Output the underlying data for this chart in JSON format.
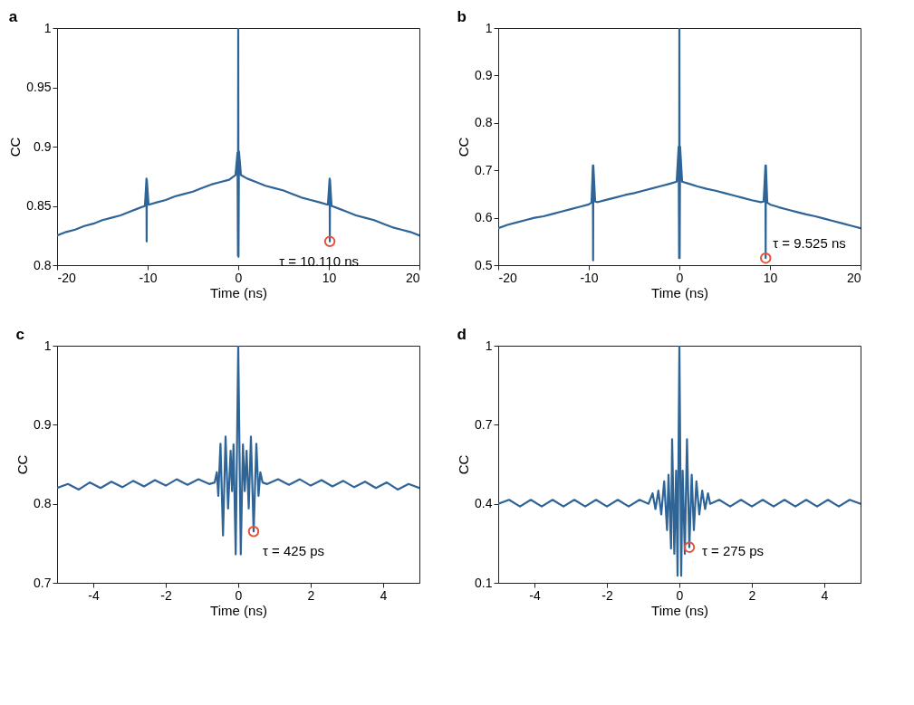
{
  "chart_data": [
    {
      "type": "line",
      "title": "a",
      "xlabel": "Time (ns)",
      "ylabel": "CC",
      "xlim": [
        -20,
        20
      ],
      "xticks": [
        -20,
        -10,
        0,
        10,
        20
      ],
      "ylim": [
        0.8,
        1
      ],
      "yticks": [
        0.8,
        0.85,
        0.9,
        0.95,
        1
      ],
      "grid": false,
      "series": [
        {
          "color": "#2e6496",
          "x": [
            -20,
            -19,
            -18,
            -17,
            -16,
            -15,
            -14,
            -13,
            -12,
            -11,
            -10.3,
            -10.13,
            -10.11,
            -10.09,
            -9.9,
            -9,
            -8,
            -7,
            -6,
            -5,
            -4,
            -3,
            -2,
            -1,
            -0.3,
            -0.08,
            -0.03,
            0,
            0.03,
            0.08,
            0.3,
            1,
            2,
            3,
            4,
            5,
            6,
            7,
            8,
            9,
            9.9,
            10.09,
            10.11,
            10.13,
            10.3,
            11,
            12,
            13,
            14,
            15,
            16,
            17,
            18,
            19,
            20
          ],
          "values": [
            0.825,
            0.828,
            0.83,
            0.833,
            0.835,
            0.838,
            0.84,
            0.842,
            0.845,
            0.848,
            0.85,
            0.873,
            0.82,
            0.872,
            0.851,
            0.853,
            0.855,
            0.858,
            0.86,
            0.862,
            0.865,
            0.868,
            0.87,
            0.872,
            0.876,
            0.895,
            0.808,
            1.0,
            0.807,
            0.896,
            0.876,
            0.873,
            0.87,
            0.867,
            0.865,
            0.863,
            0.86,
            0.857,
            0.855,
            0.853,
            0.851,
            0.873,
            0.82,
            0.872,
            0.85,
            0.848,
            0.845,
            0.842,
            0.84,
            0.838,
            0.835,
            0.832,
            0.83,
            0.828,
            0.825
          ]
        },
        {
          "type": "scatter",
          "marker": "circle",
          "color": "#e5533d",
          "x": [
            10.11
          ],
          "values": [
            0.82
          ]
        }
      ],
      "annotations": [
        {
          "text": "τ = 10.110 ns",
          "x": 10.11,
          "y": 0.82
        }
      ]
    },
    {
      "type": "line",
      "title": "b",
      "xlabel": "Time (ns)",
      "ylabel": "CC",
      "xlim": [
        -20,
        20
      ],
      "xticks": [
        -20,
        -10,
        0,
        10,
        20
      ],
      "ylim": [
        0.5,
        1
      ],
      "yticks": [
        0.5,
        0.6,
        0.7,
        0.8,
        0.9,
        1
      ],
      "grid": false,
      "series": [
        {
          "color": "#2e6496",
          "x": [
            -20,
            -19,
            -18,
            -17,
            -16,
            -15,
            -14,
            -13,
            -12,
            -11,
            -10,
            -9.7,
            -9.55,
            -9.525,
            -9.5,
            -9.3,
            -9,
            -8,
            -7,
            -6,
            -5,
            -4,
            -3,
            -2,
            -1,
            -0.3,
            -0.08,
            -0.03,
            0,
            0.03,
            0.08,
            0.3,
            1,
            2,
            3,
            4,
            5,
            6,
            7,
            8,
            9,
            9.3,
            9.5,
            9.525,
            9.55,
            9.7,
            10,
            11,
            12,
            13,
            14,
            15,
            16,
            17,
            18,
            19,
            20
          ],
          "values": [
            0.578,
            0.585,
            0.59,
            0.595,
            0.6,
            0.603,
            0.608,
            0.613,
            0.618,
            0.623,
            0.628,
            0.632,
            0.71,
            0.51,
            0.71,
            0.634,
            0.633,
            0.638,
            0.643,
            0.648,
            0.652,
            0.657,
            0.662,
            0.667,
            0.672,
            0.676,
            0.75,
            0.515,
            1.0,
            0.515,
            0.75,
            0.676,
            0.672,
            0.666,
            0.661,
            0.657,
            0.652,
            0.647,
            0.642,
            0.637,
            0.633,
            0.634,
            0.71,
            0.515,
            0.71,
            0.632,
            0.628,
            0.622,
            0.617,
            0.612,
            0.607,
            0.603,
            0.598,
            0.593,
            0.588,
            0.583,
            0.578
          ]
        },
        {
          "type": "scatter",
          "marker": "circle",
          "color": "#e5533d",
          "x": [
            9.525
          ],
          "values": [
            0.515
          ]
        }
      ],
      "annotations": [
        {
          "text": "τ = 9.525 ns",
          "x": 9.525,
          "y": 0.515
        }
      ]
    },
    {
      "type": "line",
      "title": "c",
      "xlabel": "Time (ns)",
      "ylabel": "CC",
      "xlim": [
        -5,
        5
      ],
      "xticks": [
        -4,
        -2,
        0,
        2,
        4
      ],
      "ylim": [
        0.7,
        1
      ],
      "yticks": [
        0.7,
        0.8,
        0.9,
        1
      ],
      "grid": false,
      "series": [
        {
          "color": "#2e6496",
          "x": [
            -5,
            -4.7,
            -4.4,
            -4.1,
            -3.8,
            -3.5,
            -3.2,
            -2.9,
            -2.6,
            -2.3,
            -2.0,
            -1.7,
            -1.4,
            -1.1,
            -0.8,
            -0.65,
            -0.59,
            -0.55,
            -0.49,
            -0.42,
            -0.35,
            -0.28,
            -0.21,
            -0.17,
            -0.13,
            -0.07,
            0,
            0.07,
            0.13,
            0.18,
            0.23,
            0.29,
            0.35,
            0.425,
            0.5,
            0.56,
            0.61,
            0.67,
            0.8,
            1.1,
            1.4,
            1.7,
            2.0,
            2.3,
            2.6,
            2.9,
            3.2,
            3.5,
            3.8,
            4.1,
            4.4,
            4.7,
            5
          ],
          "values": [
            0.82,
            0.825,
            0.818,
            0.827,
            0.82,
            0.828,
            0.821,
            0.829,
            0.822,
            0.83,
            0.823,
            0.831,
            0.824,
            0.831,
            0.825,
            0.827,
            0.84,
            0.81,
            0.876,
            0.76,
            0.885,
            0.794,
            0.867,
            0.816,
            0.875,
            0.736,
            1.0,
            0.736,
            0.875,
            0.816,
            0.867,
            0.794,
            0.885,
            0.765,
            0.876,
            0.81,
            0.84,
            0.827,
            0.825,
            0.831,
            0.824,
            0.831,
            0.823,
            0.83,
            0.822,
            0.829,
            0.821,
            0.828,
            0.82,
            0.827,
            0.818,
            0.825,
            0.82
          ]
        },
        {
          "type": "scatter",
          "marker": "circle",
          "color": "#e5533d",
          "x": [
            0.425
          ],
          "values": [
            0.765
          ]
        }
      ],
      "annotations": [
        {
          "text": "τ = 425 ps",
          "x": 0.425,
          "y": 0.765
        }
      ]
    },
    {
      "type": "line",
      "title": "d",
      "xlabel": "Time (ns)",
      "ylabel": "CC",
      "xlim": [
        -5,
        5
      ],
      "xticks": [
        -4,
        -2,
        0,
        2,
        4
      ],
      "ylim": [
        0.1,
        1
      ],
      "yticks": [
        0.1,
        0.4,
        0.7,
        1
      ],
      "grid": false,
      "series": [
        {
          "color": "#2e6496",
          "x": [
            -5,
            -4.7,
            -4.4,
            -4.1,
            -3.8,
            -3.5,
            -3.2,
            -2.9,
            -2.6,
            -2.3,
            -2.0,
            -1.7,
            -1.4,
            -1.1,
            -0.85,
            -0.74,
            -0.66,
            -0.58,
            -0.5,
            -0.42,
            -0.34,
            -0.3,
            -0.23,
            -0.2,
            -0.14,
            -0.09,
            -0.05,
            0,
            0.05,
            0.09,
            0.15,
            0.21,
            0.275,
            0.34,
            0.4,
            0.47,
            0.55,
            0.63,
            0.71,
            0.79,
            0.85,
            1.1,
            1.4,
            1.7,
            2.0,
            2.3,
            2.6,
            2.9,
            3.2,
            3.5,
            3.8,
            4.1,
            4.4,
            4.7,
            5
          ],
          "values": [
            0.4,
            0.415,
            0.39,
            0.415,
            0.39,
            0.415,
            0.39,
            0.415,
            0.39,
            0.415,
            0.39,
            0.415,
            0.39,
            0.415,
            0.4,
            0.44,
            0.38,
            0.45,
            0.36,
            0.485,
            0.3,
            0.51,
            0.23,
            0.645,
            0.21,
            0.526,
            0.127,
            1.0,
            0.127,
            0.526,
            0.21,
            0.645,
            0.235,
            0.51,
            0.3,
            0.485,
            0.36,
            0.45,
            0.38,
            0.44,
            0.4,
            0.415,
            0.39,
            0.415,
            0.39,
            0.415,
            0.39,
            0.415,
            0.39,
            0.415,
            0.39,
            0.415,
            0.39,
            0.415,
            0.4
          ]
        },
        {
          "type": "scatter",
          "marker": "circle",
          "color": "#e5533d",
          "x": [
            0.275
          ],
          "values": [
            0.235
          ]
        }
      ],
      "annotations": [
        {
          "text": "τ = 275 ps",
          "x": 0.275,
          "y": 0.235
        }
      ]
    }
  ]
}
